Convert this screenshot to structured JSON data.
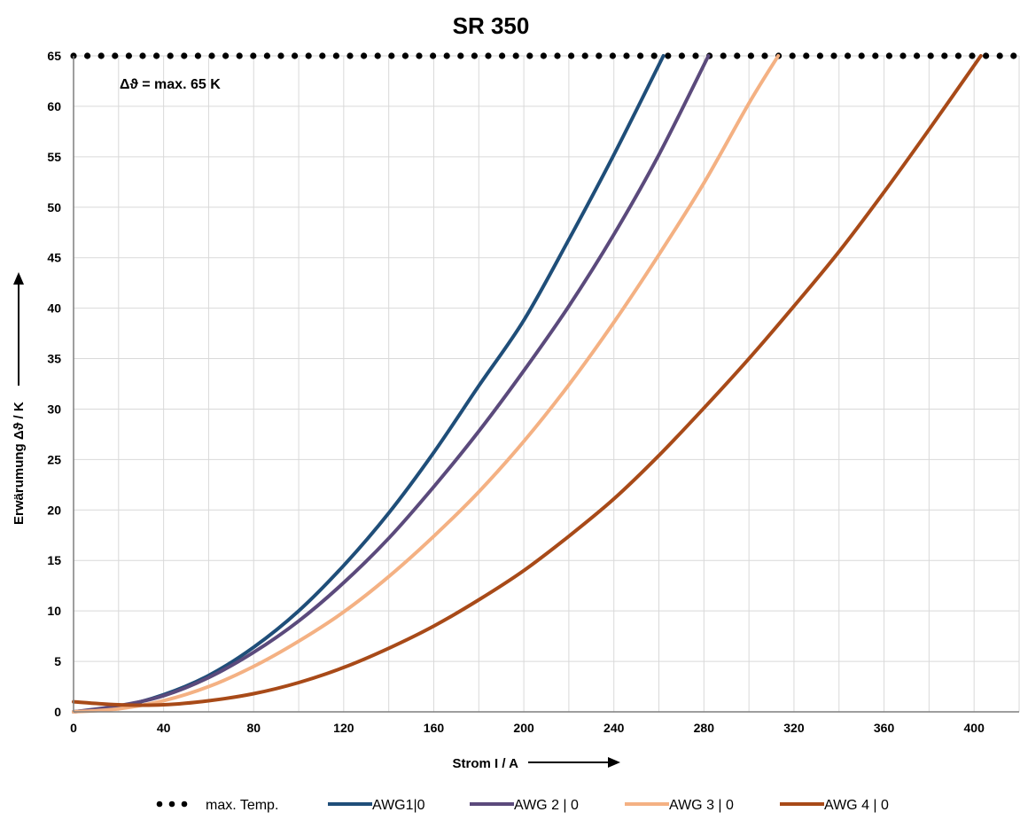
{
  "chart_data": {
    "type": "line",
    "title": "SR 350",
    "xlabel": "Strom I / A",
    "ylabel": "Erwärumung Δϑ / K",
    "xlim": [
      0,
      420
    ],
    "ylim": [
      0,
      65
    ],
    "x_ticks": [
      0,
      40,
      80,
      120,
      160,
      200,
      240,
      280,
      320,
      360,
      400
    ],
    "y_ticks": [
      0,
      5,
      10,
      15,
      20,
      25,
      30,
      35,
      40,
      45,
      50,
      55,
      60,
      65
    ],
    "grid": true,
    "legend_position": "bottom",
    "annotation": "Δϑ = max. 65 K",
    "series": [
      {
        "name": "max. Temp.",
        "style": "dotted",
        "color": "#000000",
        "x": [
          0,
          420
        ],
        "y": [
          65,
          65
        ]
      },
      {
        "name": "AWG1|0",
        "color": "#1f4e79",
        "x": [
          0,
          20,
          40,
          60,
          80,
          100,
          120,
          140,
          160,
          180,
          200,
          220,
          240,
          262
        ],
        "y": [
          0,
          0.5,
          1.7,
          3.6,
          6.4,
          10,
          14.5,
          19.7,
          25.7,
          32.3,
          38.8,
          46.8,
          55.2,
          65
        ]
      },
      {
        "name": "AWG 2 | 0",
        "color": "#5b4a7c",
        "x": [
          0,
          20,
          40,
          60,
          80,
          100,
          120,
          140,
          160,
          180,
          200,
          220,
          240,
          260,
          282
        ],
        "y": [
          0,
          0.6,
          1.6,
          3.4,
          5.9,
          9,
          12.8,
          17.2,
          22.3,
          27.8,
          33.8,
          40.2,
          47.3,
          55.2,
          65
        ]
      },
      {
        "name": "AWG 3 | 0",
        "color": "#f4b183",
        "x": [
          0,
          20,
          40,
          60,
          80,
          100,
          120,
          140,
          160,
          180,
          200,
          220,
          240,
          260,
          280,
          300,
          313
        ],
        "y": [
          0,
          0.3,
          1.1,
          2.5,
          4.5,
          7,
          9.9,
          13.4,
          17.4,
          21.8,
          26.8,
          32.4,
          38.6,
          45.3,
          52.4,
          60.3,
          65
        ]
      },
      {
        "name": "AWG 4 | 0",
        "color": "#a84a18",
        "x": [
          0,
          20,
          40,
          60,
          80,
          100,
          120,
          140,
          160,
          180,
          200,
          220,
          240,
          260,
          280,
          300,
          320,
          340,
          360,
          380,
          403
        ],
        "y": [
          1,
          0.7,
          0.7,
          1.1,
          1.8,
          2.9,
          4.4,
          6.3,
          8.5,
          11.1,
          14,
          17.4,
          21.1,
          25.4,
          30.1,
          35,
          40.2,
          45.6,
          51.5,
          57.7,
          65
        ]
      }
    ]
  }
}
